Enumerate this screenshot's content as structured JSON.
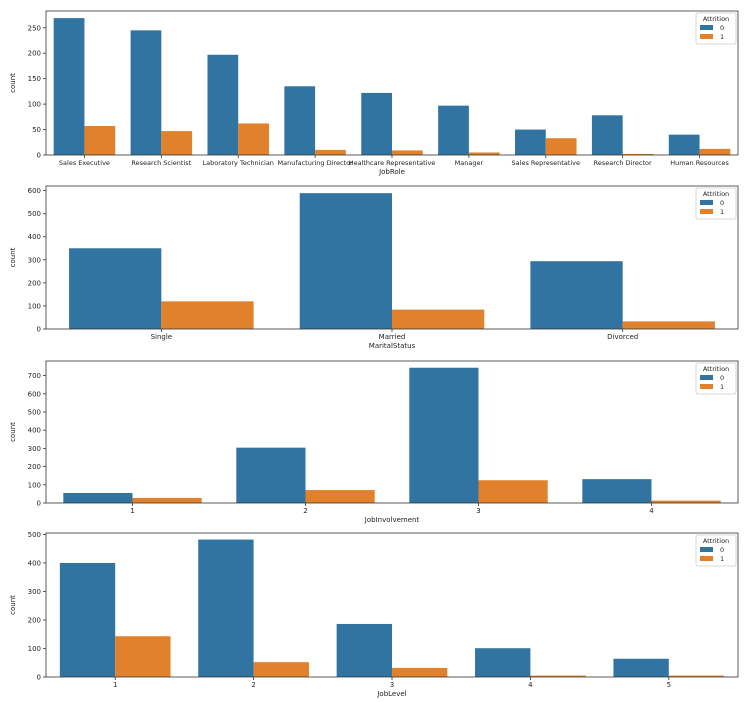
{
  "chart_data": [
    {
      "type": "bar",
      "xlabel": "JobRole",
      "ylabel": "count",
      "categories": [
        "Sales Executive",
        "Research Scientist",
        "Laboratory Technician",
        "Manufacturing Director",
        "Healthcare Representative",
        "Manager",
        "Sales Representative",
        "Research Director",
        "Human Resources"
      ],
      "yticks": [
        0,
        50,
        100,
        150,
        200,
        250
      ],
      "ylim": [
        0,
        283
      ],
      "legend_title": "Attrition",
      "legend_position": "top-right",
      "series": [
        {
          "name": "0",
          "color": "#3274a1",
          "values": [
            269,
            245,
            197,
            135,
            122,
            97,
            50,
            78,
            40
          ]
        },
        {
          "name": "1",
          "color": "#e1812c",
          "values": [
            57,
            47,
            62,
            10,
            9,
            5,
            33,
            2,
            12
          ]
        }
      ]
    },
    {
      "type": "bar",
      "xlabel": "MaritalStatus",
      "ylabel": "count",
      "categories": [
        "Single",
        "Married",
        "Divorced"
      ],
      "yticks": [
        0,
        100,
        200,
        300,
        400,
        500,
        600
      ],
      "ylim": [
        0,
        620
      ],
      "legend_title": "Attrition",
      "legend_position": "top-right",
      "series": [
        {
          "name": "0",
          "color": "#3274a1",
          "values": [
            350,
            589,
            294
          ]
        },
        {
          "name": "1",
          "color": "#e1812c",
          "values": [
            120,
            84,
            33
          ]
        }
      ]
    },
    {
      "type": "bar",
      "xlabel": "JobInvolvement",
      "ylabel": "count",
      "categories": [
        "1",
        "2",
        "3",
        "4"
      ],
      "yticks": [
        0,
        100,
        200,
        300,
        400,
        500,
        600,
        700
      ],
      "ylim": [
        0,
        780
      ],
      "legend_title": "Attrition",
      "legend_position": "top-right",
      "series": [
        {
          "name": "0",
          "color": "#3274a1",
          "values": [
            55,
            304,
            743,
            131
          ]
        },
        {
          "name": "1",
          "color": "#e1812c",
          "values": [
            28,
            71,
            125,
            13
          ]
        }
      ]
    },
    {
      "type": "bar",
      "xlabel": "JobLevel",
      "ylabel": "count",
      "categories": [
        "1",
        "2",
        "3",
        "4",
        "5"
      ],
      "yticks": [
        0,
        100,
        200,
        300,
        400,
        500
      ],
      "ylim": [
        0,
        505
      ],
      "legend_title": "Attrition",
      "legend_position": "top-right",
      "series": [
        {
          "name": "0",
          "color": "#3274a1",
          "values": [
            400,
            482,
            186,
            101,
            64
          ]
        },
        {
          "name": "1",
          "color": "#e1812c",
          "values": [
            143,
            52,
            32,
            5,
            5
          ]
        }
      ]
    }
  ]
}
